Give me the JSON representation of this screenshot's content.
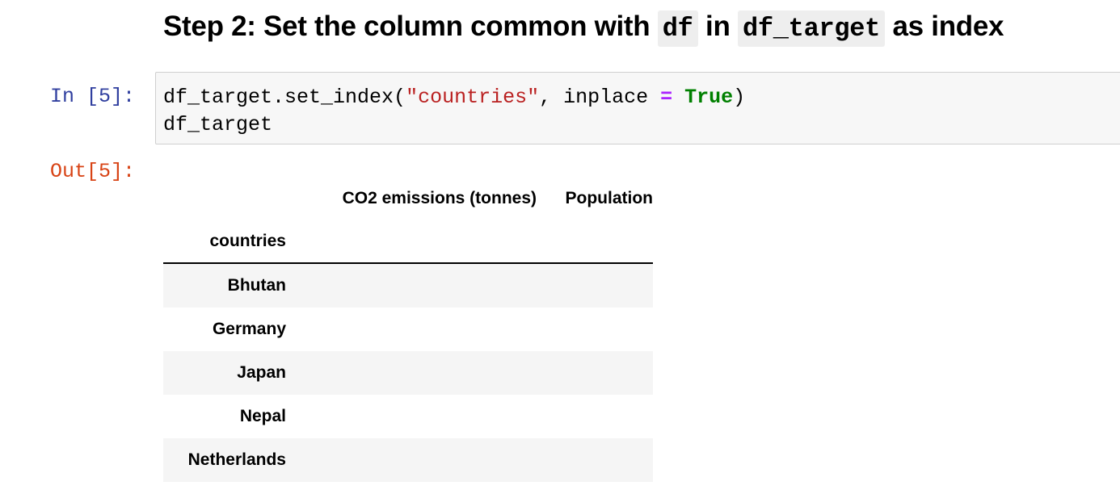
{
  "heading": {
    "text_before": "Step 2: Set the column common with ",
    "code1": "df",
    "text_middle": " in ",
    "code2": "df_target",
    "text_after": " as index"
  },
  "input_cell": {
    "prompt": "In [5]:",
    "code": {
      "l1_prefix": "df_target.set_index(",
      "l1_string": "\"countries\"",
      "l1_middle": ", inplace ",
      "l1_operator": "=",
      "l1_space": " ",
      "l1_keyword": "True",
      "l1_suffix": ")",
      "l2": "df_target"
    }
  },
  "output_cell": {
    "prompt": "Out[5]:",
    "dataframe": {
      "columns": [
        "CO2 emissions (tonnes)",
        "Population"
      ],
      "index_name": "countries",
      "rows": [
        {
          "index": "Bhutan",
          "values": [
            "",
            ""
          ]
        },
        {
          "index": "Germany",
          "values": [
            "",
            ""
          ]
        },
        {
          "index": "Japan",
          "values": [
            "",
            ""
          ]
        },
        {
          "index": "Nepal",
          "values": [
            "",
            ""
          ]
        },
        {
          "index": "Netherlands",
          "values": [
            "",
            ""
          ]
        }
      ]
    }
  },
  "colors": {
    "in_prompt": "#303f9f",
    "out_prompt": "#d84315",
    "string": "#ba2121",
    "operator": "#aa22ff",
    "keyword": "#008000"
  }
}
